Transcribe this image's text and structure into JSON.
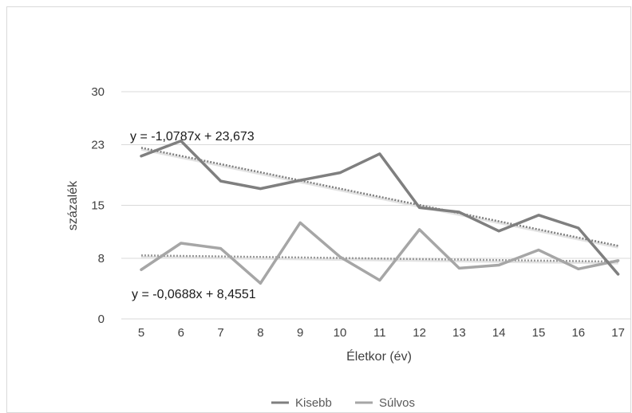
{
  "chart_data": {
    "type": "line",
    "x": [
      5,
      6,
      7,
      8,
      9,
      10,
      11,
      12,
      13,
      14,
      15,
      16,
      17
    ],
    "xlabel": "Életkor (év)",
    "ylabel": "százalék",
    "ylim": [
      0,
      30
    ],
    "yticks": [
      0,
      8,
      15,
      23,
      30
    ],
    "grid": true,
    "legend_position": "bottom",
    "series": [
      {
        "name": "Kisebb",
        "color": "#7f7f7f",
        "values": [
          21.5,
          23.5,
          18.2,
          17.2,
          18.3,
          19.3,
          21.8,
          14.7,
          14.1,
          11.6,
          13.7,
          12.0,
          5.9
        ],
        "trendline": {
          "slope": -1.0787,
          "intercept": 23.673,
          "label": "y = -1,0787x + 23,673"
        }
      },
      {
        "name": "Súlvos",
        "color": "#a6a6a6",
        "values": [
          6.5,
          10.0,
          9.3,
          4.7,
          12.7,
          8.2,
          5.1,
          11.8,
          6.7,
          7.1,
          9.1,
          6.6,
          7.7
        ],
        "trendline": {
          "slope": -0.0688,
          "intercept": 8.4551,
          "label": "y = -0,0688x + 8,4551"
        }
      }
    ]
  }
}
